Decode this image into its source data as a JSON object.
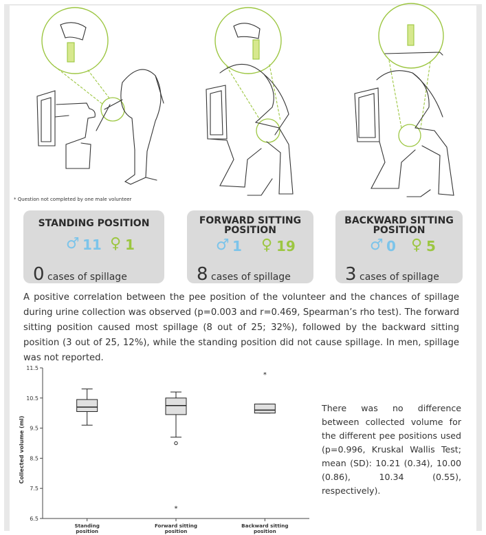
{
  "footnote": "* Question not completed by one male volunteer",
  "cards": [
    {
      "title": "STANDING POSITION",
      "male_count": "11",
      "female_count": "1",
      "spillage_number": "0",
      "spillage_label": "cases of spillage"
    },
    {
      "title": "FORWARD SITTING POSITION",
      "title_line1": "FORWARD SITTING",
      "title_line2": "POSITION",
      "male_count": "1",
      "female_count": "19",
      "spillage_number": "8",
      "spillage_label": "cases of spillage"
    },
    {
      "title": "BACKWARD SITTING POSITION",
      "title_line1": "BACKWARD SITTING",
      "title_line2": "POSITION",
      "male_count": "0",
      "female_count": "5",
      "spillage_number": "3",
      "spillage_label": "cases of spillage"
    }
  ],
  "symbols": {
    "male": "♂",
    "female": "♀"
  },
  "colors": {
    "male": "#7cc4ea",
    "female": "#9cc641",
    "card_bg": "#dadada",
    "box_fill": "#e0e0e0"
  },
  "paragraph": "A positive correlation between the pee position of the volunteer and the chances of spillage during urine collection was observed (p=0.003 and r=0.469, Spearman’s rho test). The forward sitting position caused most spillage (8 out of 25; 32%), followed by the backward sitting position (3 out of 25, 12%), while the standing position did not cause spillage. In men, spillage was not reported.",
  "side_text": "There was no difference between collected volume for the different pee positions used (p=0.996, Kruskal Wallis Test; mean (SD): 10.21 (0.34), 10.00 (0.86), 10.34 (0.55), respectively).",
  "chart_data": {
    "type": "box",
    "ylabel": "Collected volume (ml)",
    "xlabel": "",
    "ylim": [
      6.5,
      11.5
    ],
    "yticks": [
      "6.5",
      "7.5",
      "8.5",
      "9.5",
      "10.5",
      "11.5"
    ],
    "categories": [
      "Standing position",
      "Forward sitting position",
      "Backward sitting position"
    ],
    "category_lines": [
      [
        "Standing",
        "position"
      ],
      [
        "Forward sitting",
        "position"
      ],
      [
        "Backward sitting",
        "position"
      ]
    ],
    "boxes": [
      {
        "min": 9.6,
        "q1": 10.05,
        "median": 10.2,
        "q3": 10.45,
        "max": 10.8,
        "outliers": [],
        "extremes": []
      },
      {
        "min": 9.2,
        "q1": 9.95,
        "median": 10.25,
        "q3": 10.5,
        "max": 10.7,
        "outliers": [
          9.0
        ],
        "extremes": [
          6.85
        ]
      },
      {
        "min": 10.0,
        "q1": 10.0,
        "median": 10.1,
        "q3": 10.3,
        "max": 10.3,
        "outliers": [],
        "extremes": [
          11.3
        ]
      }
    ],
    "grid": false,
    "legend": "none"
  }
}
